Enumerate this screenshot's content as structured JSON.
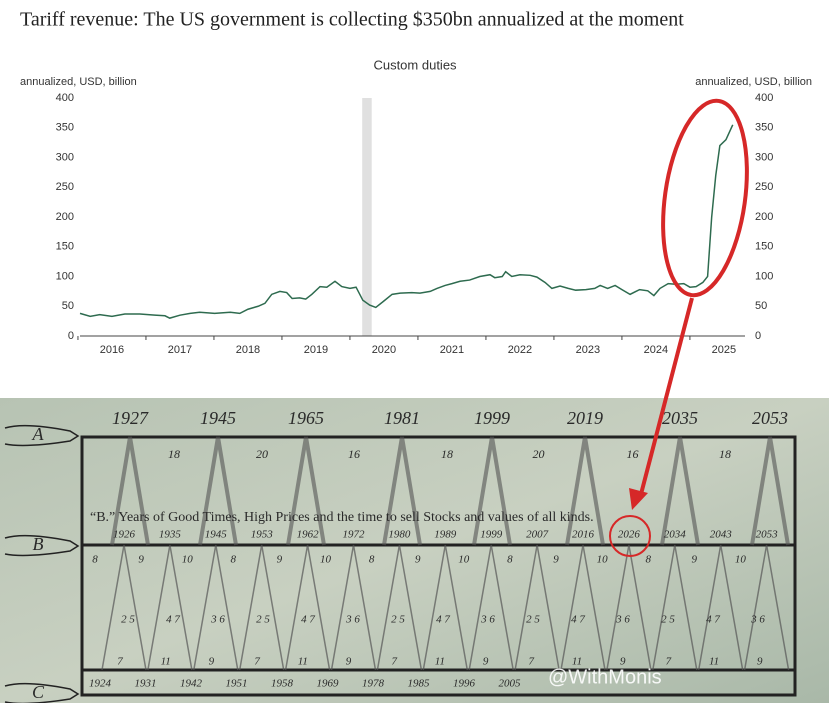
{
  "chart_data": {
    "type": "line",
    "title": "Tariff revenue: The US government is collecting $350bn annualized at the moment",
    "subtitle": "Custom duties",
    "y_label": "annualized, USD, billion",
    "y2_label": "annualized, USD, billion",
    "xlim": [
      2015.53,
      2025.31
    ],
    "xticks": [
      2016,
      2017,
      2018,
      2019,
      2020,
      2021,
      2022,
      2023,
      2024,
      2025
    ],
    "ylim": [
      0,
      400
    ],
    "yticks": [
      0,
      50,
      100,
      150,
      200,
      250,
      300,
      350,
      400
    ],
    "y2lim": [
      0,
      400
    ],
    "y2ticks": [
      0,
      50,
      100,
      150,
      200,
      250,
      300,
      350,
      400
    ],
    "shaded": [
      2019.68,
      2019.82
    ],
    "shade_color": "#e0e0e0",
    "series": [
      {
        "name": "Custom duties",
        "color": "#2e6b4f",
        "x": [
          2015.53,
          2015.68,
          2015.82,
          2016,
          2016.19,
          2016.41,
          2016.63,
          2016.78,
          2016.85,
          2017,
          2017.15,
          2017.29,
          2017.51,
          2017.74,
          2017.88,
          2018,
          2018.15,
          2018.25,
          2018.35,
          2018.47,
          2018.57,
          2018.65,
          2018.76,
          2018.85,
          2018.94,
          2019.06,
          2019.16,
          2019.28,
          2019.38,
          2019.5,
          2019.59,
          2019.69,
          2019.79,
          2019.88,
          2019.99,
          2020.12,
          2020.24,
          2020.41,
          2020.53,
          2020.68,
          2020.78,
          2020.9,
          2021,
          2021.12,
          2021.26,
          2021.41,
          2021.56,
          2021.63,
          2021.74,
          2021.79,
          2021.88,
          2022,
          2022.15,
          2022.25,
          2022.37,
          2022.47,
          2022.59,
          2022.71,
          2022.82,
          2022.97,
          2023.1,
          2023.18,
          2023.29,
          2023.4,
          2023.5,
          2023.62,
          2023.76,
          2023.88,
          2023.97,
          2024.06,
          2024.18,
          2024.29,
          2024.41,
          2024.5,
          2024.59,
          2024.69,
          2024.76,
          2024.82,
          2024.88,
          2024.94,
          2025.03,
          2025.13
        ],
        "values": [
          38,
          33,
          36,
          33,
          37,
          37,
          35,
          34,
          30,
          35,
          38,
          40,
          38,
          40,
          38,
          45,
          50,
          55,
          70,
          75,
          73,
          63,
          64,
          62,
          70,
          83,
          82,
          92,
          83,
          80,
          82,
          60,
          52,
          48,
          58,
          70,
          72,
          73,
          72,
          75,
          80,
          85,
          88,
          92,
          94,
          100,
          103,
          98,
          100,
          108,
          100,
          103,
          102,
          99,
          90,
          80,
          84,
          80,
          77,
          78,
          80,
          85,
          80,
          85,
          78,
          70,
          78,
          76,
          68,
          80,
          88,
          87,
          88,
          82,
          83,
          90,
          100,
          200,
          270,
          320,
          330,
          355
        ]
      }
    ]
  },
  "benner": {
    "labels": [
      "A",
      "B",
      "C"
    ],
    "a_years": [
      "1927",
      "1945",
      "1965",
      "1981",
      "1999",
      "2019",
      "2035",
      "2053"
    ],
    "a_intervals": [
      "18",
      "20",
      "16",
      "18",
      "20",
      "16",
      "18"
    ],
    "caption": "“B.” Years of Good Times, High Prices and the time to sell Stocks and values of all kinds.",
    "b_years": [
      "1926",
      "1935",
      "1945",
      "1953",
      "1962",
      "1972",
      "1980",
      "1989",
      "1999",
      "2007",
      "2016",
      "2026",
      "2034",
      "2043",
      "2053"
    ],
    "b_upper": [
      "8",
      "9",
      "10",
      "8",
      "9",
      "10",
      "8",
      "9",
      "10",
      "8",
      "9",
      "10",
      "8",
      "9",
      "10"
    ],
    "b_middle": [
      "2 5",
      "4 7",
      "3 6",
      "2 5",
      "4 7",
      "3 6",
      "2 5",
      "4 7",
      "3 6",
      "2 5",
      "4 7",
      "3 6",
      "2 5",
      "4 7",
      "3 6"
    ],
    "b_lower": [
      "7",
      "11",
      "9",
      "7",
      "11",
      "9",
      "7",
      "11",
      "9",
      "7",
      "11",
      "9",
      "7",
      "11",
      "9"
    ],
    "c_years": [
      "1924",
      "1931",
      "1942",
      "1951",
      "1958",
      "1969",
      "1978",
      "1985",
      "1996",
      "2005"
    ],
    "watermark": "@WithMonis"
  }
}
